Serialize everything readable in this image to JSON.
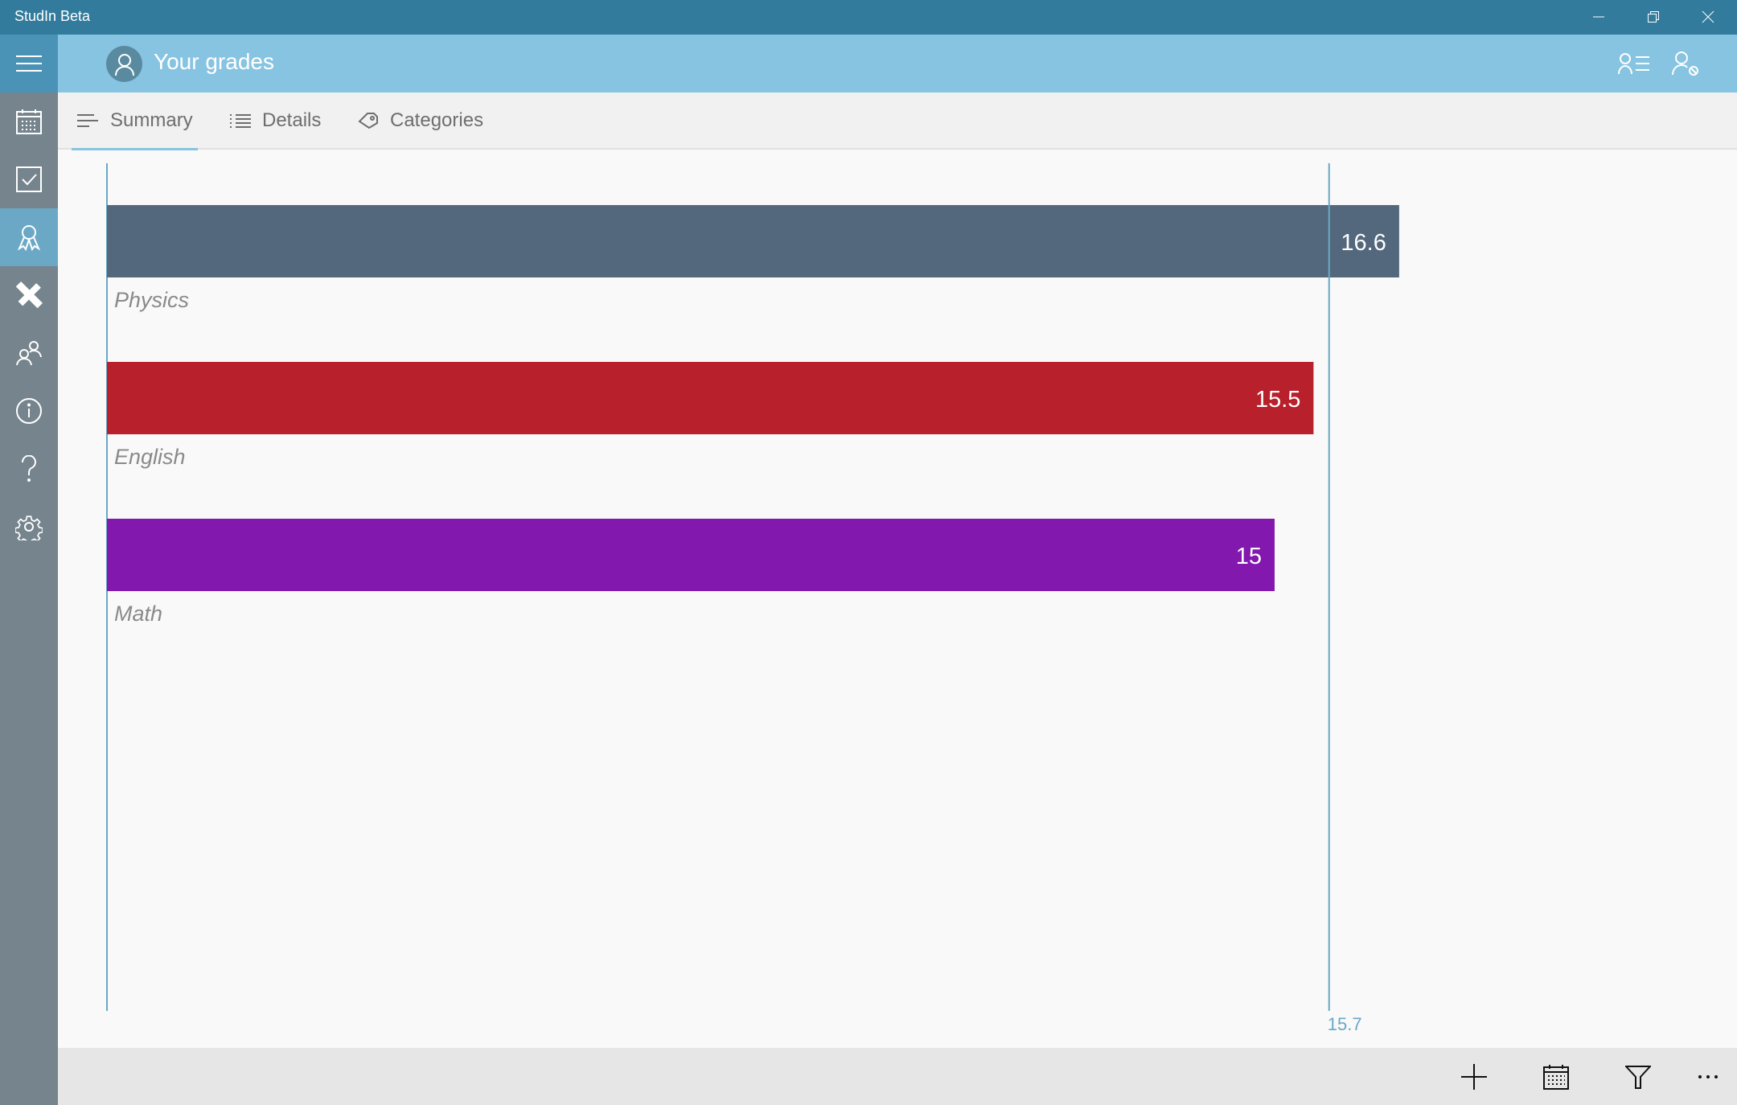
{
  "app": {
    "title": "StudIn Beta"
  },
  "header": {
    "title": "Your grades"
  },
  "tabs": [
    {
      "label": "Summary",
      "icon": "summary-lines-icon",
      "active": true
    },
    {
      "label": "Details",
      "icon": "list-icon"
    },
    {
      "label": "Categories",
      "icon": "tag-icon"
    }
  ],
  "sidebar": {
    "items": [
      "calendar-icon",
      "checkbox-icon",
      "award-icon",
      "ruler-pencil-icon",
      "people-icon",
      "info-icon",
      "help-icon",
      "settings-icon"
    ],
    "active": "award-icon"
  },
  "bottombar": {
    "items": [
      "add-icon",
      "calendar-icon",
      "filter-icon",
      "more-icon"
    ]
  },
  "chart_data": {
    "type": "bar",
    "orientation": "horizontal",
    "categories": [
      "Physics",
      "English",
      "Math"
    ],
    "values": [
      16.6,
      15.5,
      15
    ],
    "data_labels": [
      "16.6",
      "15.5",
      "15"
    ],
    "colors": [
      "#53687c",
      "#b8202b",
      "#8218ae"
    ],
    "reference_line": {
      "value": 15.7,
      "label": "15.7",
      "color": "#6aa8c6"
    },
    "xlim": [
      0,
      21.4
    ]
  }
}
